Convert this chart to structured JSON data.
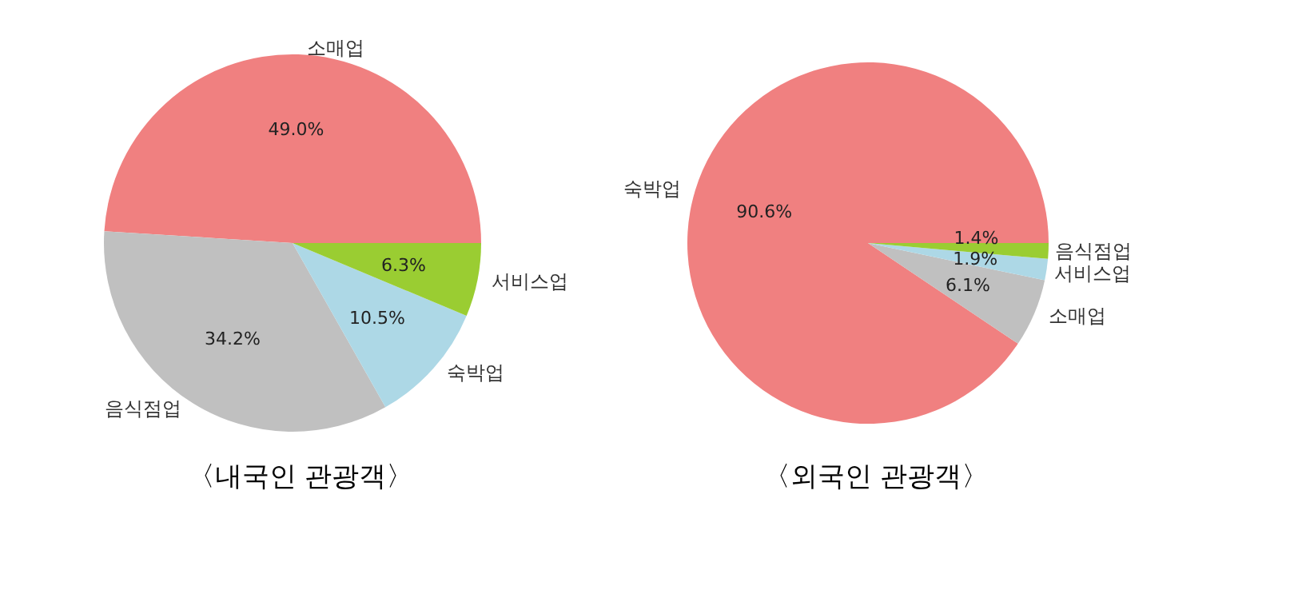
{
  "chart_data": [
    {
      "type": "pie",
      "title": "〈내국인 관광객〉",
      "categories": [
        "소매업",
        "음식점업",
        "숙박업",
        "서비스업"
      ],
      "values": [
        49.0,
        34.2,
        10.5,
        6.3
      ],
      "colors": [
        "#f08080",
        "#c0c0c0",
        "#add8e6",
        "#9acd32"
      ],
      "value_labels": [
        "49.0%",
        "34.2%",
        "10.5%",
        "6.3%"
      ]
    },
    {
      "type": "pie",
      "title": "〈외국인 관광객〉",
      "categories": [
        "숙박업",
        "소매업",
        "서비스업",
        "음식점업"
      ],
      "values": [
        90.6,
        6.1,
        1.9,
        1.4
      ],
      "colors": [
        "#f08080",
        "#c0c0c0",
        "#add8e6",
        "#9acd32"
      ],
      "value_labels": [
        "90.6%",
        "6.1%",
        "1.9%",
        "1.4%"
      ]
    }
  ]
}
